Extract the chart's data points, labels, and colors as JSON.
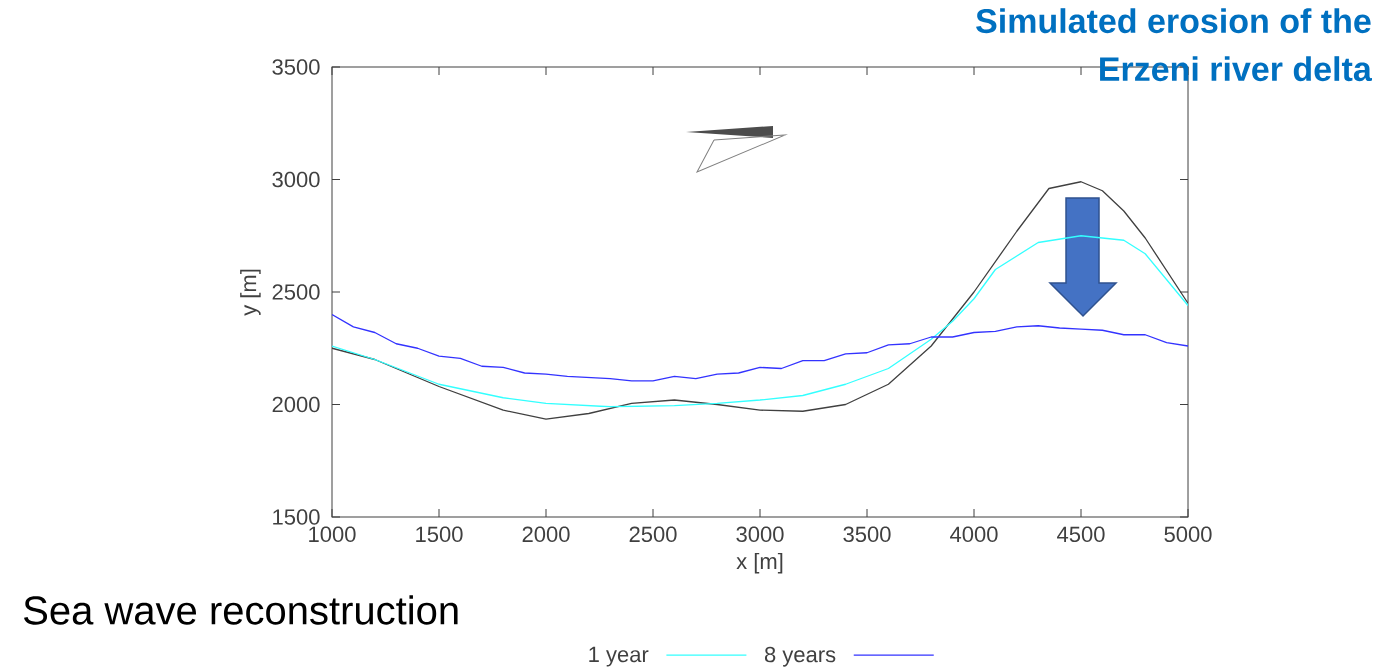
{
  "chart_data": {
    "type": "line",
    "title": "Simulated erosion of the Erzeni river delta",
    "xlabel": "x [m]",
    "ylabel": "y [m]",
    "annotations": [
      "Sea wave reconstruction"
    ],
    "xlim": [
      1000,
      5000
    ],
    "ylim": [
      1500,
      3500
    ],
    "xticks": [
      1000,
      1500,
      2000,
      2500,
      3000,
      3500,
      4000,
      4500,
      5000
    ],
    "yticks": [
      1500,
      2000,
      2500,
      3000,
      3500
    ],
    "grid": false,
    "legend": "bottom",
    "marker": "none",
    "line_style": "solid",
    "series": [
      {
        "color": "#404040",
        "x": [
          1000,
          1200,
          1500,
          1800,
          2000,
          2200,
          2400,
          2600,
          2800,
          3000,
          3200,
          3400,
          3600,
          3800,
          4000,
          4200,
          4350,
          4500,
          4600,
          4700,
          4800,
          5000
        ],
        "values": [
          2250,
          2200,
          2080,
          1975,
          1935,
          1960,
          2005,
          2020,
          2000,
          1975,
          1970,
          2000,
          2090,
          2260,
          2500,
          2770,
          2960,
          2990,
          2950,
          2860,
          2740,
          2450
        ]
      },
      {
        "name": "1 year",
        "color": "#33ffff",
        "x": [
          1000,
          1200,
          1500,
          1800,
          2000,
          2300,
          2600,
          2800,
          3000,
          3200,
          3400,
          3600,
          3800,
          3900,
          4000,
          4100,
          4300,
          4500,
          4700,
          4800,
          5000
        ],
        "values": [
          2260,
          2200,
          2090,
          2030,
          2005,
          1990,
          1995,
          2005,
          2020,
          2040,
          2090,
          2160,
          2290,
          2370,
          2470,
          2600,
          2720,
          2750,
          2730,
          2670,
          2440
        ]
      },
      {
        "name": "8 years",
        "color": "#3333ff",
        "x": [
          1000,
          1100,
          1200,
          1300,
          1400,
          1500,
          1600,
          1700,
          1800,
          1900,
          2000,
          2100,
          2200,
          2300,
          2400,
          2500,
          2600,
          2700,
          2800,
          2900,
          3000,
          3100,
          3200,
          3300,
          3400,
          3500,
          3600,
          3700,
          3800,
          3900,
          4000,
          4100,
          4200,
          4300,
          4400,
          4500,
          4600,
          4700,
          4800,
          4900,
          5000
        ],
        "values": [
          2400,
          2345,
          2320,
          2270,
          2250,
          2215,
          2205,
          2170,
          2165,
          2140,
          2135,
          2125,
          2120,
          2115,
          2105,
          2105,
          2125,
          2115,
          2135,
          2140,
          2165,
          2160,
          2195,
          2195,
          2225,
          2230,
          2265,
          2270,
          2300,
          2300,
          2320,
          2325,
          2345,
          2350,
          2340,
          2335,
          2330,
          2310,
          2310,
          2275,
          2260
        ]
      }
    ]
  }
}
